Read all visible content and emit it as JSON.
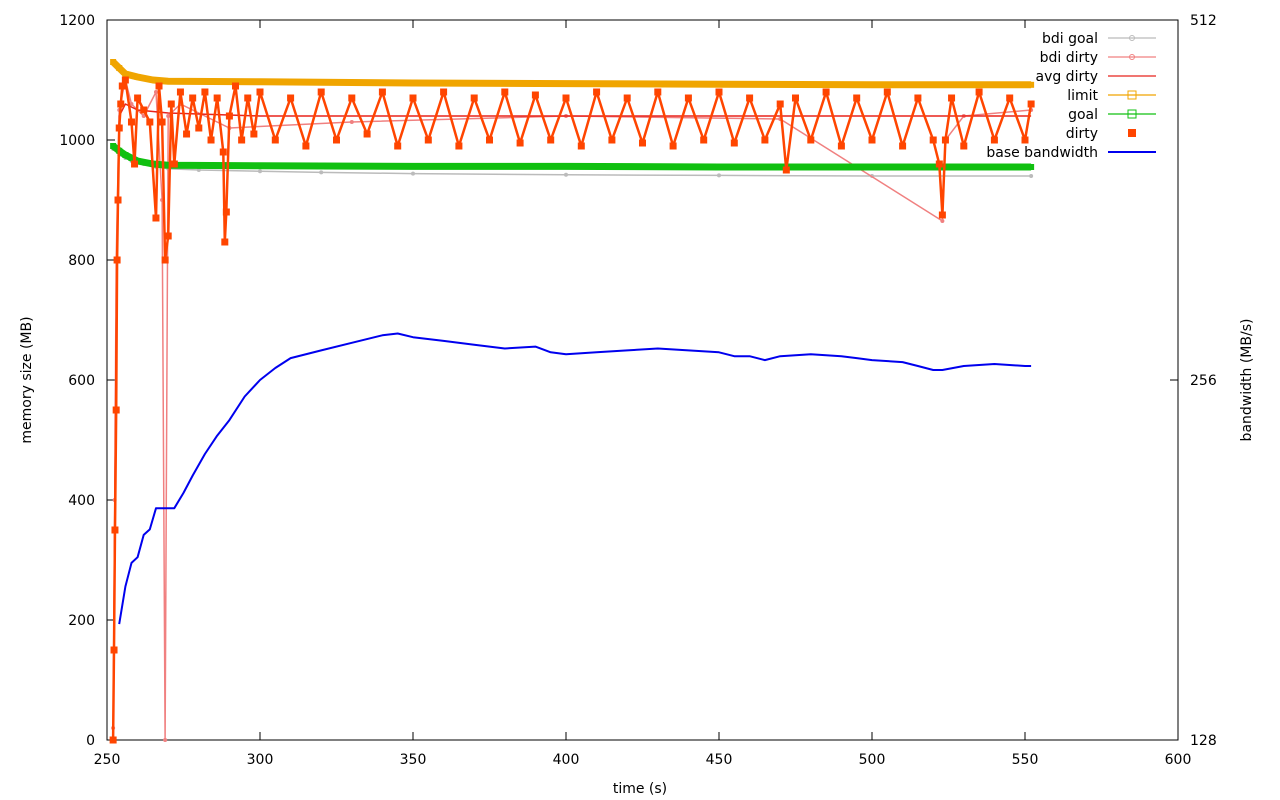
{
  "chart_data": {
    "type": "line",
    "title": "",
    "xlabel": "time (s)",
    "ylabel": "memory size (MB)",
    "y2label": "bandwidth (MB/s)",
    "xlim": [
      250,
      600
    ],
    "ylim": [
      0,
      1200
    ],
    "y2lim": [
      128,
      512
    ],
    "xticks": [
      "250",
      "300",
      "350",
      "400",
      "450",
      "500",
      "550",
      "600"
    ],
    "yticks": [
      "0",
      "200",
      "400",
      "600",
      "800",
      "1000",
      "1200"
    ],
    "y2ticks": [
      "128",
      "256",
      "512"
    ],
    "legend_position": "top-right",
    "grid": false,
    "series": [
      {
        "name": "bdi goal",
        "color": "#bbbbbb",
        "style": "line-points-small",
        "x": [
          252,
          254,
          256,
          258,
          262,
          266,
          270,
          280,
          300,
          320,
          350,
          400,
          450,
          500,
          552
        ],
        "y": [
          985,
          975,
          970,
          965,
          960,
          955,
          952,
          950,
          948,
          946,
          944,
          942,
          941,
          940,
          940
        ]
      },
      {
        "name": "bdi dirty",
        "color": "#f08080",
        "style": "line-points-small",
        "x": [
          252,
          252.5,
          253,
          254,
          256,
          258,
          262,
          266,
          268,
          269,
          270,
          274,
          290,
          330,
          400,
          470,
          523,
          524,
          530,
          552
        ],
        "y": [
          20,
          400,
          800,
          1050,
          1100,
          1060,
          1040,
          1080,
          900,
          0,
          1040,
          1060,
          1020,
          1030,
          1040,
          1035,
          865,
          1000,
          1040,
          1050
        ]
      },
      {
        "name": "avg dirty",
        "color": "#e8231c",
        "style": "line",
        "x": [
          252,
          253,
          254,
          256,
          260,
          270,
          300,
          400,
          500,
          552
        ],
        "y": [
          0,
          700,
          1040,
          1060,
          1050,
          1045,
          1040,
          1040,
          1040,
          1040
        ]
      },
      {
        "name": "limit",
        "color": "#f0a500",
        "style": "line-points-thick",
        "x": [
          252,
          254,
          256,
          260,
          265,
          270,
          300,
          350,
          400,
          450,
          500,
          552
        ],
        "y": [
          1130,
          1120,
          1110,
          1105,
          1100,
          1098,
          1097,
          1095,
          1094,
          1093,
          1092,
          1092
        ]
      },
      {
        "name": "goal",
        "color": "#10c010",
        "style": "line-points-thick",
        "x": [
          252,
          254,
          256,
          258,
          260,
          265,
          270,
          300,
          350,
          400,
          450,
          500,
          552
        ],
        "y": [
          990,
          982,
          975,
          970,
          965,
          960,
          958,
          957,
          956,
          956,
          955,
          955,
          955
        ]
      },
      {
        "name": "dirty",
        "color": "#ff4500",
        "style": "points",
        "x": [
          252,
          252.3,
          252.6,
          253,
          253.3,
          253.6,
          254,
          254.5,
          255,
          256,
          258,
          259,
          260,
          262,
          264,
          266,
          267,
          268,
          269,
          270,
          271,
          272,
          274,
          276,
          278,
          280,
          282,
          284,
          286,
          288,
          288.5,
          289,
          290,
          292,
          294,
          296,
          298,
          300,
          305,
          310,
          315,
          320,
          325,
          330,
          335,
          340,
          345,
          350,
          355,
          360,
          365,
          370,
          375,
          380,
          385,
          390,
          395,
          400,
          405,
          410,
          415,
          420,
          425,
          430,
          435,
          440,
          445,
          450,
          455,
          460,
          465,
          470,
          472,
          475,
          480,
          485,
          490,
          495,
          500,
          505,
          510,
          515,
          520,
          522,
          523,
          524,
          526,
          530,
          535,
          540,
          545,
          550,
          552
        ],
        "y": [
          0,
          150,
          350,
          550,
          800,
          900,
          1020,
          1060,
          1090,
          1100,
          1030,
          960,
          1070,
          1050,
          1030,
          870,
          1090,
          1030,
          800,
          840,
          1060,
          960,
          1080,
          1010,
          1070,
          1020,
          1080,
          1000,
          1070,
          980,
          830,
          880,
          1040,
          1090,
          1000,
          1070,
          1010,
          1080,
          1000,
          1070,
          990,
          1080,
          1000,
          1070,
          1010,
          1080,
          990,
          1070,
          1000,
          1080,
          990,
          1070,
          1000,
          1080,
          995,
          1075,
          1000,
          1070,
          990,
          1080,
          1000,
          1070,
          995,
          1080,
          990,
          1070,
          1000,
          1080,
          995,
          1070,
          1000,
          1060,
          950,
          1070,
          1000,
          1080,
          990,
          1070,
          1000,
          1080,
          990,
          1070,
          1000,
          960,
          875,
          1000,
          1070,
          990,
          1080,
          1000,
          1070,
          1000,
          1060
        ]
      },
      {
        "name": "base bandwidth",
        "color": "#0000ee",
        "style": "line",
        "axis": "y2",
        "x": [
          254,
          256,
          258,
          260,
          262,
          264,
          266,
          268,
          272,
          275,
          278,
          282,
          286,
          290,
          295,
          300,
          305,
          310,
          320,
          330,
          340,
          345,
          350,
          360,
          370,
          380,
          390,
          395,
          400,
          410,
          420,
          430,
          440,
          450,
          455,
          460,
          465,
          470,
          480,
          490,
          495,
          500,
          510,
          515,
          520,
          523,
          530,
          540,
          550,
          552
        ],
        "y": [
          160,
          172,
          180,
          182,
          190,
          192,
          200,
          200,
          200,
          206,
          213,
          222,
          230,
          237,
          248,
          256,
          262,
          267,
          271,
          275,
          279,
          280,
          278,
          276,
          274,
          272,
          273,
          270,
          269,
          270,
          271,
          272,
          271,
          270,
          268,
          268,
          266,
          268,
          269,
          268,
          267,
          266,
          265,
          263,
          261,
          261,
          263,
          264,
          263,
          263
        ]
      }
    ]
  }
}
